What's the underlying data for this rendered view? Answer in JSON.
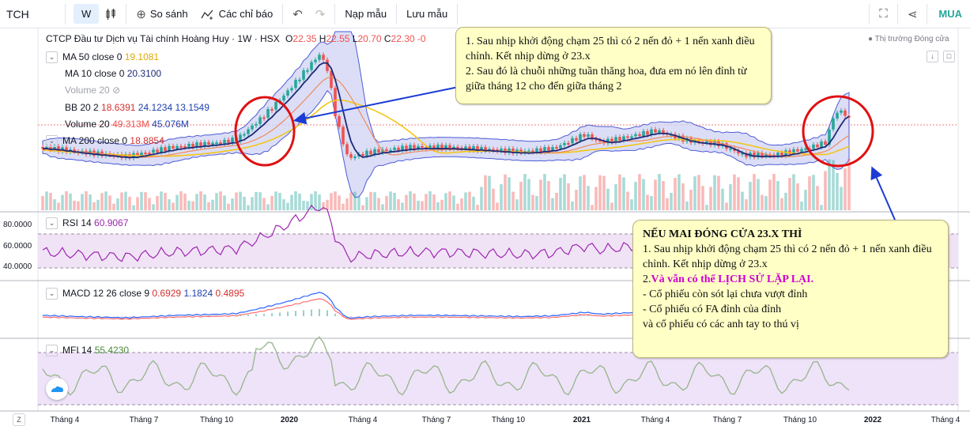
{
  "toolbar": {
    "symbol": "TCH",
    "interval": "W",
    "compare": "So sánh",
    "indicators": "Các chỉ báo",
    "load_template": "Nạp mẫu",
    "save_template": "Lưu mẫu",
    "buy": "MUA"
  },
  "header": {
    "title": "CTCP Đầu tư Dịch vụ Tài chính Hoàng Huy · 1W · HSX",
    "open_label": "O",
    "open": "22.35",
    "high_label": "H",
    "high": "22.55",
    "low_label": "L",
    "low": "20.70",
    "close_label": "C",
    "close": "22.30",
    "change": "-0",
    "market_status": "Thị trường Đóng cửa"
  },
  "legends": {
    "ma50": {
      "name": "MA 50 close 0",
      "v1": "19.1081"
    },
    "ma10": {
      "name": "MA 10 close 0",
      "v1": "20.3100"
    },
    "volume_hidden": {
      "name": "Volume 20"
    },
    "bb": {
      "name": "BB 20 2",
      "v1": "18.6391",
      "v2": "24.1234",
      "v3": "13.1549"
    },
    "volume": {
      "name": "Volume 20",
      "v1": "49.313M",
      "v2": "45.076M"
    },
    "ma200": {
      "name": "MA 200 close 0",
      "v1": "18.8854"
    },
    "rsi": {
      "name": "RSI 14",
      "v1": "60.9067"
    },
    "macd": {
      "name": "MACD 12 26 close 9",
      "v1": "0.6929",
      "v2": "1.1824",
      "v3": "0.4895"
    },
    "mfi": {
      "name": "MFI 14",
      "v1": "55.4230"
    }
  },
  "rsi_axis": [
    "80.0000",
    "60.0000",
    "40.0000"
  ],
  "x_axis": [
    "Tháng 4",
    "Tháng 7",
    "Tháng 10",
    "2020",
    "Tháng 4",
    "Tháng 7",
    "Tháng 10",
    "2021",
    "Tháng 4",
    "Tháng 7",
    "Tháng 10",
    "2022",
    "Tháng 4"
  ],
  "note1": {
    "line1": "1. Sau nhịp khởi động chạm 25 thì có 2 nến đỏ + 1 nến xanh điều chỉnh. Kết nhịp dừng ở 23.x",
    "line2": "2. Sau đó là chuỗi những tuần thăng hoa, đưa em nó lên đỉnh từ giữa tháng 12 cho đến giữa tháng 2"
  },
  "note2": {
    "title": "NẾU MAI ĐÓNG CỬA 23.X THÌ",
    "line1": "1. Sau nhịp khởi động chạm 25 thì có 2 nến đỏ + 1 nến xanh điều chỉnh. Kết nhịp dừng ở 23.x",
    "line2_prefix": "2.",
    "line2_highlight": "Và vẫn có thể LỊCH SỬ LẶP LẠI.",
    "line3": "- Cổ phiếu còn sót lại chưa vượt đỉnh",
    "line4": "- Cổ phiếu có FA đỉnh của đỉnh",
    "line5": "và cổ phiếu có các anh tay to thú vị"
  },
  "colors": {
    "up": "#26a69a",
    "down": "#ef5350",
    "ma50": "#f5c518",
    "ma10": "#1e2a78",
    "bb_fill": "#cfd3f3",
    "note_bg": "#ffffc6",
    "circle": "#e01010",
    "arrow": "#1a3bd6",
    "highlight": "#d100d1"
  }
}
